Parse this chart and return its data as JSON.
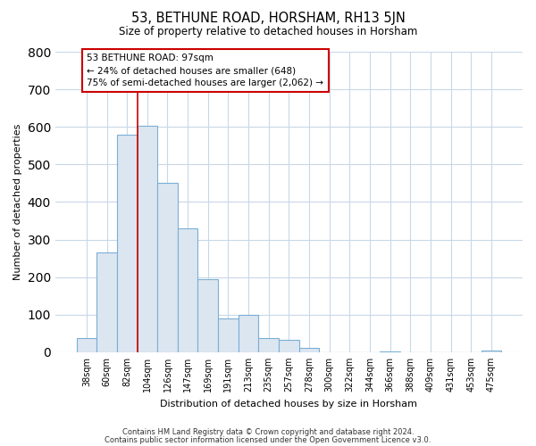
{
  "title": "53, BETHUNE ROAD, HORSHAM, RH13 5JN",
  "subtitle": "Size of property relative to detached houses in Horsham",
  "xlabel": "Distribution of detached houses by size in Horsham",
  "ylabel": "Number of detached properties",
  "bar_labels": [
    "38sqm",
    "60sqm",
    "82sqm",
    "104sqm",
    "126sqm",
    "147sqm",
    "169sqm",
    "191sqm",
    "213sqm",
    "235sqm",
    "257sqm",
    "278sqm",
    "300sqm",
    "322sqm",
    "344sqm",
    "366sqm",
    "388sqm",
    "409sqm",
    "431sqm",
    "453sqm",
    "475sqm"
  ],
  "bar_values": [
    38,
    265,
    580,
    602,
    450,
    330,
    195,
    90,
    100,
    38,
    32,
    12,
    0,
    0,
    0,
    3,
    0,
    0,
    0,
    0,
    5
  ],
  "bar_color": "#dce6f1",
  "bar_edge_color": "#7bafd4",
  "reference_line_color": "#cc0000",
  "ylim": [
    0,
    800
  ],
  "yticks": [
    0,
    100,
    200,
    300,
    400,
    500,
    600,
    700,
    800
  ],
  "annotation_line1": "53 BETHUNE ROAD: 97sqm",
  "annotation_line2": "← 24% of detached houses are smaller (648)",
  "annotation_line3": "75% of semi-detached houses are larger (2,062) →",
  "footer_line1": "Contains HM Land Registry data © Crown copyright and database right 2024.",
  "footer_line2": "Contains public sector information licensed under the Open Government Licence v3.0.",
  "background_color": "#ffffff",
  "grid_color": "#c8d8e8"
}
